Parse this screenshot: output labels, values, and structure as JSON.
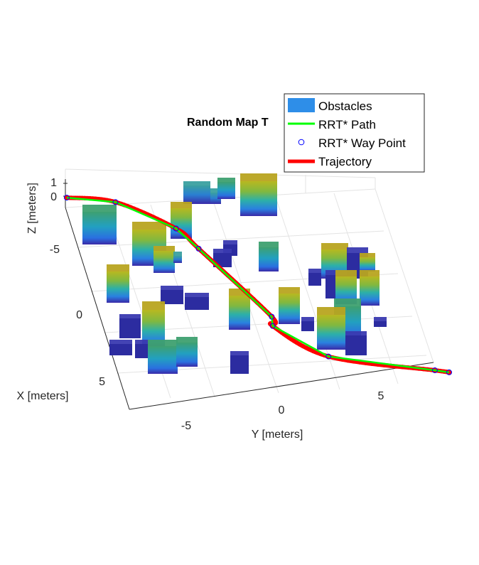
{
  "chart_data": {
    "type": "3d-scatter",
    "title": "Random Map T",
    "xlabel": "X [meters]",
    "ylabel": "Y [meters]",
    "zlabel": "Z [meters]",
    "x_ticks": [
      "-5",
      "0",
      "5"
    ],
    "y_ticks": [
      "-5",
      "0",
      "5"
    ],
    "z_ticks": [
      "0",
      "1"
    ],
    "grid": true,
    "legend_position": "top-right",
    "legend": [
      {
        "label": "Obstacles",
        "color": "#2e8ee8",
        "marker": "patch"
      },
      {
        "label": "RRT* Path",
        "color": "#00ff00",
        "marker": "line"
      },
      {
        "label": "RRT* Way Point",
        "color": "#0000ff",
        "marker": "circle"
      },
      {
        "label": "Trajectory",
        "color": "#ff0000",
        "marker": "thick-line"
      }
    ],
    "waypoints": [
      {
        "x": -9.5,
        "y": -9.5
      },
      {
        "x": -9.0,
        "y": -6.7
      },
      {
        "x": -6.8,
        "y": -3.8
      },
      {
        "x": -5.2,
        "y": -3.0
      },
      {
        "x": 0.2,
        "y": -0.5
      },
      {
        "x": 0.9,
        "y": -0.7
      },
      {
        "x": 3.4,
        "y": 1.8
      },
      {
        "x": 4.8,
        "y": 7.8
      },
      {
        "x": 5.0,
        "y": 8.6
      }
    ]
  }
}
